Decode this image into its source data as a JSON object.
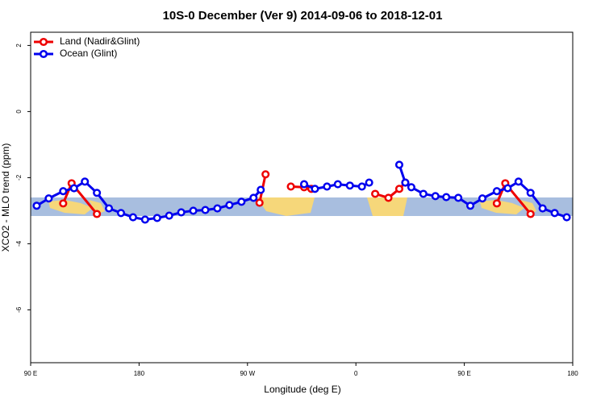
{
  "chart_data": {
    "type": "line",
    "title": "10S-0 December (Ver 9)   2014-09-06 to 2018-12-01",
    "xlabel": "Longitude (deg E)",
    "ylabel": "XCO2 - MLO trend (ppm)",
    "xlim": [
      90,
      540
    ],
    "xticks": [
      {
        "value": 90,
        "label": "90 E"
      },
      180,
      {
        "value": 270,
        "label": "90 W"
      },
      {
        "value": 360,
        "label": "0"
      },
      {
        "value": 450,
        "label": "90 E"
      },
      {
        "value": 540,
        "label": "180"
      }
    ],
    "ylim": [
      -7.6,
      2.4
    ],
    "yticks": [
      2,
      0,
      -2,
      -4,
      -6
    ],
    "legend": "top-left",
    "series": [
      {
        "name": "Land (Nadir&Glint)",
        "color": "#ee0000",
        "x": [
          117,
          124,
          145,
          null,
          280,
          285,
          null,
          306,
          317,
          323,
          null,
          376,
          387,
          396,
          401,
          null,
          477,
          484,
          505
        ],
        "values": [
          -2.78,
          -2.17,
          -3.1,
          null,
          -2.76,
          -1.9,
          null,
          -2.27,
          -2.29,
          -2.34,
          null,
          -2.49,
          -2.61,
          -2.34,
          -2.15,
          null,
          -2.78,
          -2.17,
          -3.1
        ]
      },
      {
        "name": "Ocean (Glint)",
        "color": "#0000ee",
        "x": [
          95,
          105,
          117,
          126,
          135,
          145,
          155,
          165,
          175,
          185,
          195,
          205,
          215,
          225,
          235,
          245,
          255,
          265,
          275,
          281,
          null,
          317,
          326,
          336,
          345,
          355,
          365,
          371,
          null,
          396,
          401,
          406,
          416,
          426,
          435,
          445,
          455,
          465,
          477,
          486,
          495,
          505,
          515,
          525,
          535
        ],
        "values": [
          -2.85,
          -2.63,
          -2.41,
          -2.32,
          -2.12,
          -2.46,
          -2.93,
          -3.07,
          -3.2,
          -3.27,
          -3.22,
          -3.15,
          -3.05,
          -3.0,
          -2.98,
          -2.93,
          -2.83,
          -2.73,
          -2.61,
          -2.37,
          null,
          -2.2,
          -2.34,
          -2.27,
          -2.2,
          -2.24,
          -2.27,
          -2.15,
          null,
          -1.61,
          -2.15,
          -2.29,
          -2.49,
          -2.56,
          -2.59,
          -2.61,
          -2.85,
          -2.63,
          -2.41,
          -2.32,
          -2.12,
          -2.46,
          -2.93,
          -3.07,
          -3.2
        ]
      }
    ]
  }
}
